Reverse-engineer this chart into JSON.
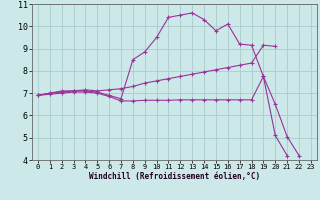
{
  "xlabel": "Windchill (Refroidissement éolien,°C)",
  "bg_color": "#cce8e8",
  "grid_color": "#aacccc",
  "line_color": "#993399",
  "xlim": [
    -0.5,
    23.5
  ],
  "ylim": [
    4,
    11
  ],
  "yticks": [
    4,
    5,
    6,
    7,
    8,
    9,
    10,
    11
  ],
  "xticks": [
    0,
    1,
    2,
    3,
    4,
    5,
    6,
    7,
    8,
    9,
    10,
    11,
    12,
    13,
    14,
    15,
    16,
    17,
    18,
    19,
    20,
    21,
    22,
    23
  ],
  "series1_x": [
    0,
    1,
    2,
    3,
    4,
    5,
    6,
    7,
    8,
    9,
    10,
    11,
    12,
    13,
    14,
    15,
    16,
    17,
    18,
    19,
    20,
    21
  ],
  "series1_y": [
    6.9,
    7.0,
    7.1,
    7.1,
    7.1,
    7.05,
    6.9,
    6.75,
    8.5,
    8.85,
    9.5,
    10.4,
    10.5,
    10.6,
    10.3,
    9.8,
    10.1,
    9.2,
    9.15,
    7.75,
    5.1,
    4.2
  ],
  "series2_x": [
    0,
    1,
    2,
    3,
    4,
    5,
    6,
    7,
    8,
    9,
    10,
    11,
    12,
    13,
    14,
    15,
    16,
    17,
    18,
    19,
    20
  ],
  "series2_y": [
    6.9,
    7.0,
    7.05,
    7.1,
    7.15,
    7.1,
    7.15,
    7.2,
    7.3,
    7.45,
    7.55,
    7.65,
    7.75,
    7.85,
    7.95,
    8.05,
    8.15,
    8.25,
    8.35,
    9.15,
    9.1
  ],
  "series3_x": [
    0,
    1,
    2,
    3,
    4,
    5,
    6,
    7,
    8,
    9,
    10,
    11,
    12,
    13,
    14,
    15,
    16,
    17,
    18,
    19,
    20,
    21,
    22
  ],
  "series3_y": [
    6.9,
    6.95,
    7.0,
    7.05,
    7.05,
    7.0,
    6.85,
    6.65,
    6.65,
    6.68,
    6.68,
    6.68,
    6.7,
    6.7,
    6.7,
    6.7,
    6.7,
    6.7,
    6.7,
    7.75,
    6.5,
    5.05,
    4.2
  ]
}
